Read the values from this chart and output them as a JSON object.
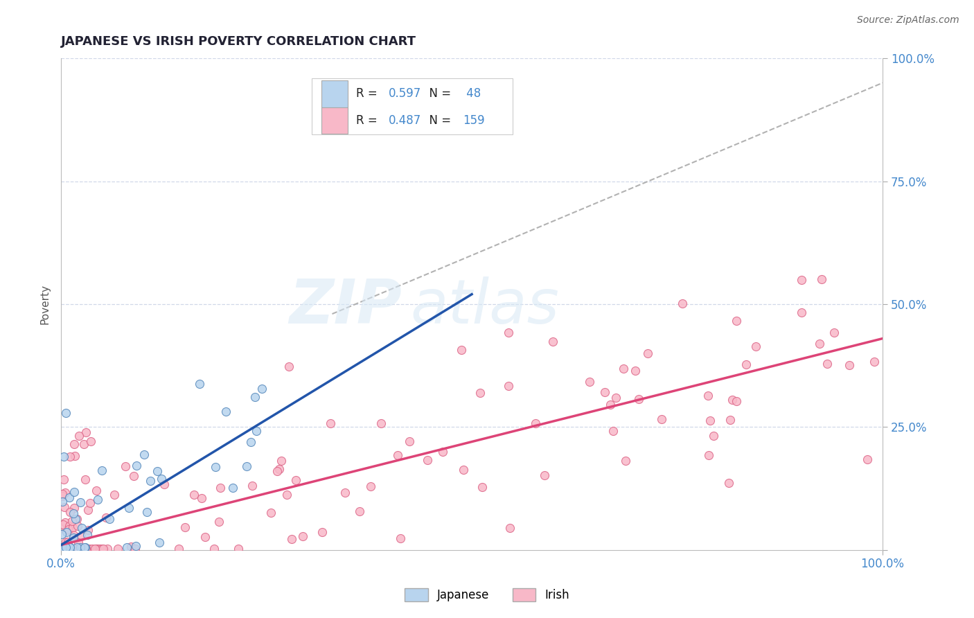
{
  "title": "JAPANESE VS IRISH POVERTY CORRELATION CHART",
  "source": "Source: ZipAtlas.com",
  "ylabel": "Poverty",
  "japanese_fill_color": "#b8d4ee",
  "japanese_edge_color": "#5588bb",
  "irish_fill_color": "#f8b8c8",
  "irish_edge_color": "#dd6688",
  "japanese_line_color": "#2255aa",
  "irish_line_color": "#dd4477",
  "dashed_line_color": "#aaaaaa",
  "axis_tick_color": "#4488cc",
  "title_color": "#222233",
  "source_color": "#666666",
  "ylabel_color": "#555555",
  "grid_color": "#d0d8e8",
  "background_color": "#ffffff",
  "legend_box_edge": "#cccccc",
  "jp_R": "0.597",
  "jp_N": "48",
  "ir_R": "0.487",
  "ir_N": "159",
  "jp_trend_x": [
    0,
    50
  ],
  "jp_trend_y": [
    1,
    52
  ],
  "ir_trend_x": [
    0,
    100
  ],
  "ir_trend_y": [
    1,
    43
  ],
  "dash_trend_x": [
    33,
    100
  ],
  "dash_trend_y": [
    48,
    95
  ],
  "xlim": [
    0,
    100
  ],
  "ylim": [
    0,
    100
  ],
  "xtick_positions": [
    0,
    100
  ],
  "xtick_labels": [
    "0.0%",
    "100.0%"
  ],
  "ytick_positions": [
    0,
    25,
    50,
    75,
    100
  ],
  "ytick_labels_right": [
    "",
    "25.0%",
    "50.0%",
    "75.0%",
    "100.0%"
  ],
  "grid_yticks": [
    25,
    50,
    75,
    100
  ],
  "watermark_zip": "ZIP",
  "watermark_atlas": "atlas",
  "legend_label1": "R = 0.597   N =  48",
  "legend_label2": "R = 0.487   N = 159",
  "bottom_legend_labels": [
    "Japanese",
    "Irish"
  ]
}
